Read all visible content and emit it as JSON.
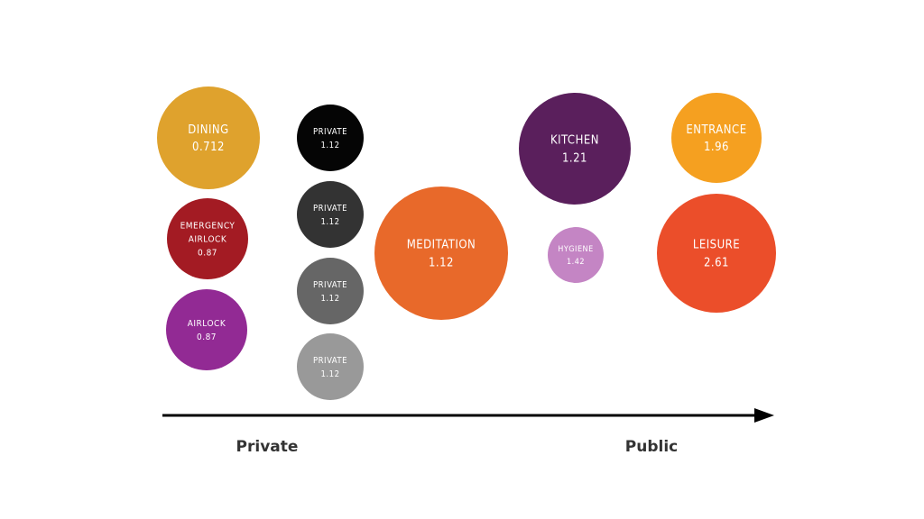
{
  "axis": {
    "left_label": "Private",
    "right_label": "Public"
  },
  "bubbles": [
    {
      "name": "bubble-dining",
      "lines": [
        "DINING",
        "0.712"
      ],
      "color": "#DFA22D"
    },
    {
      "name": "bubble-emergency-airlock",
      "lines": [
        "EMERGENCY",
        "AIRLOCK",
        "0.87"
      ],
      "color": "#A31B23"
    },
    {
      "name": "bubble-airlock",
      "lines": [
        "AIRLOCK",
        "0.87"
      ],
      "color": "#922A94"
    },
    {
      "name": "bubble-private-1",
      "lines": [
        "PRIVATE",
        "1.12"
      ],
      "color": "#050505"
    },
    {
      "name": "bubble-private-2",
      "lines": [
        "PRIVATE",
        "1.12"
      ],
      "color": "#333333"
    },
    {
      "name": "bubble-private-3",
      "lines": [
        "PRIVATE",
        "1.12"
      ],
      "color": "#666666"
    },
    {
      "name": "bubble-private-4",
      "lines": [
        "PRIVATE",
        "1.12"
      ],
      "color": "#999999"
    },
    {
      "name": "bubble-meditation",
      "lines": [
        "MEDITATION",
        "1.12"
      ],
      "color": "#E8692A"
    },
    {
      "name": "bubble-kitchen",
      "lines": [
        "KITCHEN",
        "1.21"
      ],
      "color": "#5A1F5C"
    },
    {
      "name": "bubble-hygiene",
      "lines": [
        "HYGIENE",
        "1.42"
      ],
      "color": "#C485C4"
    },
    {
      "name": "bubble-entrance",
      "lines": [
        "ENTRANCE",
        "1.96"
      ],
      "color": "#F5A020"
    },
    {
      "name": "bubble-leisure",
      "lines": [
        "LEISURE",
        "2.61"
      ],
      "color": "#EB4E2A"
    }
  ]
}
